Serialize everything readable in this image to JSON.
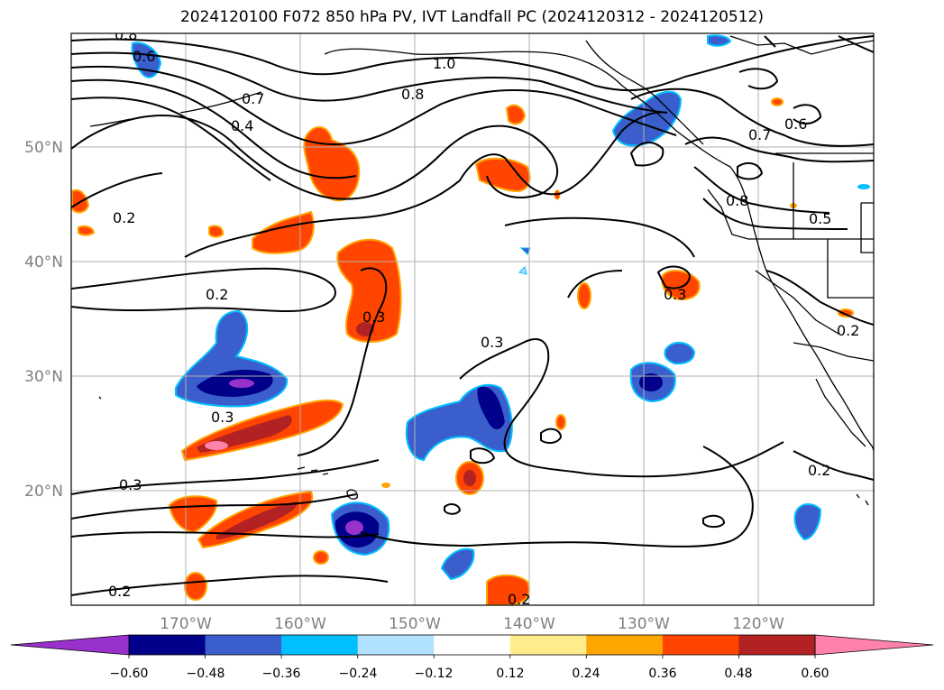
{
  "title": "2024120100 F072 850 hPa PV, IVT Landfall PC (2024120312 - 2024120512)",
  "map": {
    "extent": {
      "lon_min": -180,
      "lon_max": -110,
      "lat_min": 10,
      "lat_max": 60
    },
    "lat_labels": [
      "50°N",
      "40°N",
      "30°N",
      "20°N"
    ],
    "lon_labels": [
      "170°W",
      "160°W",
      "150°W",
      "140°W",
      "130°W",
      "120°W"
    ],
    "gridlines": true,
    "contour_labels": [
      "0.8",
      "0.6",
      "1.0",
      "0.8",
      "0.7",
      "0.4",
      "0.2",
      "0.2",
      "0.3",
      "0.3",
      "0.3",
      "0.3",
      "0.3",
      "0.2",
      "0.2",
      "0.7",
      "0.6",
      "0.8",
      "0.5",
      "0.2",
      "0.2"
    ]
  },
  "colorbar": {
    "ticks": [
      "−0.60",
      "−0.48",
      "−0.36",
      "−0.24",
      "−0.12",
      "0.12",
      "0.24",
      "0.36",
      "0.48",
      "0.60"
    ],
    "colors": [
      "#9932cc",
      "#00008b",
      "#3a5fcd",
      "#00bfff",
      "#b0e2ff",
      "#ffffff",
      "#ffec8b",
      "#ffa500",
      "#ff4500",
      "#b22222",
      "#ff82ab"
    ],
    "extend": "both"
  }
}
